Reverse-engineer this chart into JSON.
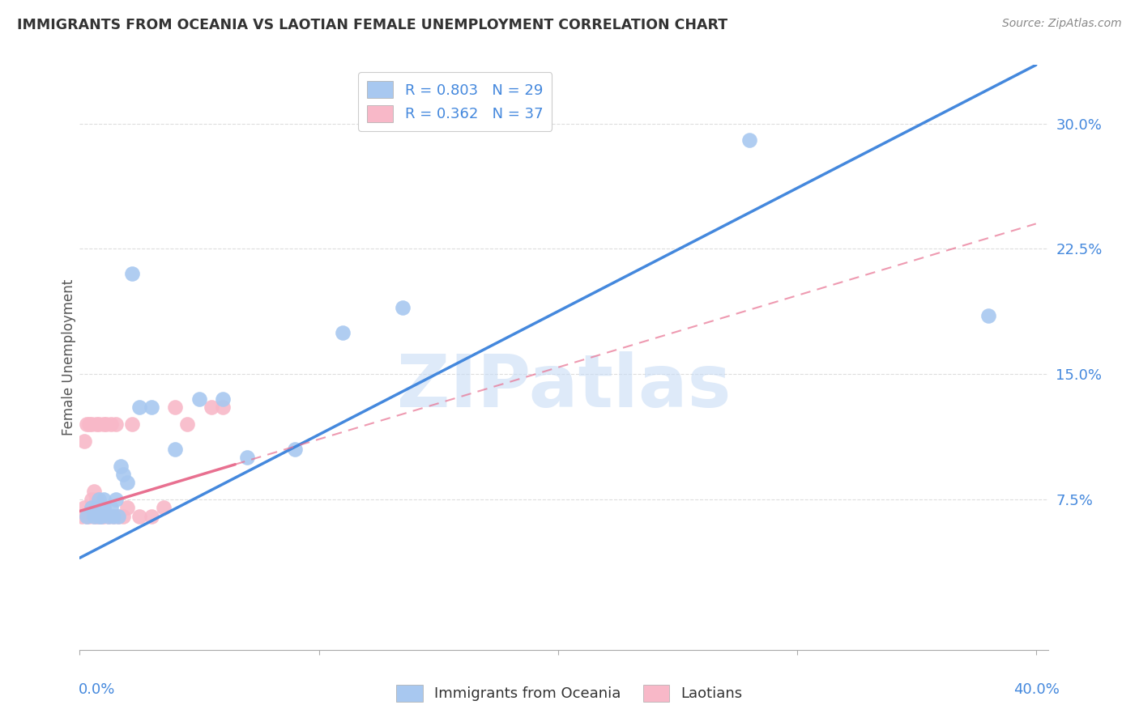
{
  "title": "IMMIGRANTS FROM OCEANIA VS LAOTIAN FEMALE UNEMPLOYMENT CORRELATION CHART",
  "source": "Source: ZipAtlas.com",
  "ylabel": "Female Unemployment",
  "yticks": [
    0.075,
    0.15,
    0.225,
    0.3
  ],
  "ytick_labels": [
    "7.5%",
    "15.0%",
    "22.5%",
    "30.0%"
  ],
  "xmin": 0.0,
  "xmax": 0.4,
  "ymin": -0.015,
  "ymax": 0.335,
  "legend1_R": "0.803",
  "legend1_N": "29",
  "legend2_R": "0.362",
  "legend2_N": "37",
  "blue_color": "#A8C8F0",
  "pink_color": "#F8B8C8",
  "blue_line_color": "#4488DD",
  "pink_line_color": "#E87090",
  "axis_label_color": "#4488DD",
  "watermark_color": "#C8DCF5",
  "title_color": "#333333",
  "source_color": "#888888",
  "grid_color": "#DDDDDD",
  "blue_scatter_x": [
    0.003,
    0.005,
    0.006,
    0.007,
    0.008,
    0.008,
    0.009,
    0.01,
    0.01,
    0.012,
    0.013,
    0.014,
    0.015,
    0.016,
    0.017,
    0.018,
    0.02,
    0.022,
    0.025,
    0.03,
    0.04,
    0.05,
    0.06,
    0.07,
    0.09,
    0.11,
    0.135,
    0.28,
    0.38
  ],
  "blue_scatter_y": [
    0.065,
    0.07,
    0.065,
    0.07,
    0.065,
    0.075,
    0.065,
    0.07,
    0.075,
    0.065,
    0.07,
    0.065,
    0.075,
    0.065,
    0.095,
    0.09,
    0.085,
    0.21,
    0.13,
    0.13,
    0.105,
    0.135,
    0.135,
    0.1,
    0.105,
    0.175,
    0.19,
    0.29,
    0.185
  ],
  "pink_scatter_x": [
    0.001,
    0.002,
    0.002,
    0.003,
    0.003,
    0.004,
    0.004,
    0.005,
    0.005,
    0.005,
    0.006,
    0.006,
    0.006,
    0.007,
    0.007,
    0.007,
    0.008,
    0.008,
    0.009,
    0.01,
    0.01,
    0.011,
    0.012,
    0.013,
    0.014,
    0.015,
    0.016,
    0.018,
    0.02,
    0.022,
    0.025,
    0.03,
    0.035,
    0.04,
    0.045,
    0.055,
    0.06
  ],
  "pink_scatter_y": [
    0.065,
    0.07,
    0.11,
    0.065,
    0.12,
    0.065,
    0.12,
    0.07,
    0.075,
    0.12,
    0.065,
    0.07,
    0.08,
    0.065,
    0.075,
    0.12,
    0.065,
    0.12,
    0.065,
    0.065,
    0.12,
    0.12,
    0.065,
    0.12,
    0.065,
    0.12,
    0.065,
    0.065,
    0.07,
    0.12,
    0.065,
    0.065,
    0.07,
    0.13,
    0.12,
    0.13,
    0.13
  ],
  "blue_line_x0": 0.0,
  "blue_line_y0": 0.04,
  "blue_line_x1": 0.4,
  "blue_line_y1": 0.335,
  "pink_line_x0": 0.0,
  "pink_line_y0": 0.068,
  "pink_line_x1": 0.4,
  "pink_line_y1": 0.24,
  "pink_line_dashed_from": 0.065,
  "watermark": "ZIPatlas"
}
